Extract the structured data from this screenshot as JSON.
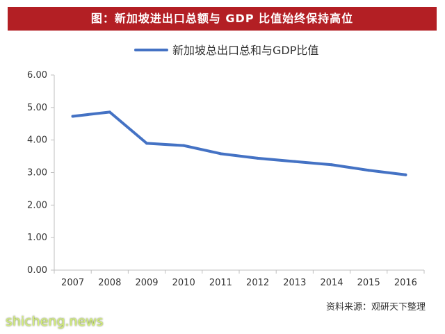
{
  "header": {
    "title": "图：新加坡进出口总额与 GDP 比值始终保持高位"
  },
  "source_note": "资料来源：观研天下整理",
  "watermark": "shicheng.news",
  "colors": {
    "title_bg": "#b31f24",
    "series_line": "#4472c4",
    "axis": "#bfbfbf",
    "text": "#333333"
  },
  "chart_data": {
    "type": "line",
    "title": "",
    "xlabel": "",
    "ylabel": "",
    "categories": [
      "2007",
      "2008",
      "2009",
      "2010",
      "2011",
      "2012",
      "2013",
      "2014",
      "2015",
      "2016"
    ],
    "series": [
      {
        "name": "新加坡总出口总和与GDP比值",
        "values": [
          4.73,
          4.86,
          3.9,
          3.83,
          3.58,
          3.44,
          3.34,
          3.24,
          3.07,
          2.93
        ],
        "color": "#4472c4"
      }
    ],
    "y_ticks": [
      "0.00",
      "1.00",
      "2.00",
      "3.00",
      "4.00",
      "5.00",
      "6.00"
    ],
    "ylim": [
      0,
      6
    ],
    "grid": false,
    "legend_position": "top"
  }
}
